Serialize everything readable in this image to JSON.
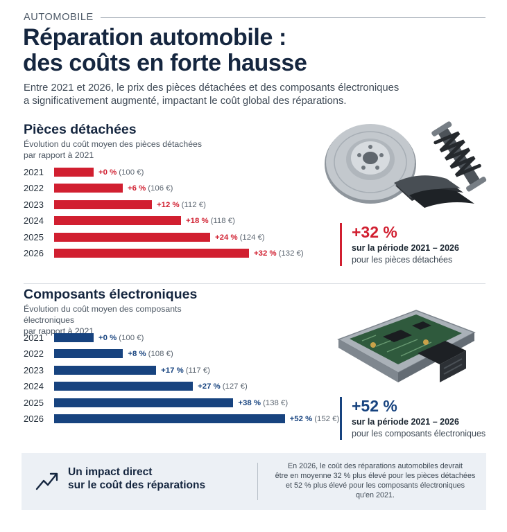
{
  "header": {
    "kicker": "AUTOMOBILE",
    "title_line1": "Réparation automobile :",
    "title_line2": "des coûts en forte hausse",
    "intro_line1": "Entre 2021 et 2026, le prix des pièces détachées et des composants électroniques",
    "intro_line2": "a significativement augmenté, impactant le coût global des réparations."
  },
  "chart_data": [
    {
      "type": "bar",
      "orientation": "horizontal",
      "title": "Pièces détachées",
      "subtitle_line1": "Évolution du coût moyen des pièces détachées",
      "subtitle_line2": "par rapport à 2021",
      "color": "#d11f30",
      "categories": [
        "2021",
        "2022",
        "2023",
        "2024",
        "2025",
        "2026"
      ],
      "values": [
        100,
        106,
        112,
        118,
        124,
        132
      ],
      "pct_labels": [
        "+0 %",
        "+6 %",
        "+12 %",
        "+18 %",
        "+24 %",
        "+32 %"
      ],
      "value_labels": [
        "(100 €)",
        "(106 €)",
        "(112 €)",
        "(118 €)",
        "(124 €)",
        "(132 €)"
      ]
    },
    {
      "type": "bar",
      "orientation": "horizontal",
      "title": "Composants électroniques",
      "subtitle_line1": "Évolution du coût moyen des composants électroniques",
      "subtitle_line2": "par rapport à 2021",
      "color": "#17437f",
      "categories": [
        "2021",
        "2022",
        "2023",
        "2024",
        "2025",
        "2026"
      ],
      "values": [
        100,
        108,
        117,
        127,
        138,
        152
      ],
      "pct_labels": [
        "+0 %",
        "+8 %",
        "+17 %",
        "+27 %",
        "+38 %",
        "+52 %"
      ],
      "value_labels": [
        "(100 €)",
        "(108 €)",
        "(117 €)",
        "(127 €)",
        "(138 €)",
        "(152 €)"
      ]
    }
  ],
  "stats": {
    "parts": {
      "value": "+32 %",
      "period": "sur la période 2021 – 2026",
      "desc": "pour les pièces détachées"
    },
    "electronics": {
      "value": "+52 %",
      "period": "sur la période 2021 – 2026",
      "desc": "pour les composants électroniques"
    }
  },
  "footer": {
    "title_line1": "Un impact direct",
    "title_line2": "sur le coût des réparations",
    "text_line1": "En 2026, le coût des réparations automobiles devrait",
    "text_line2": "être en moyenne 32 % plus élevé pour les pièces détachées",
    "text_line3": "et 52 % plus élevé pour les composants électroniques",
    "text_line4": "qu'en 2021."
  },
  "icons": [
    "brake-disc-icon",
    "shock-absorber-icon",
    "brake-pads-icon",
    "ecu-module-icon",
    "trend-arrow-icon"
  ]
}
